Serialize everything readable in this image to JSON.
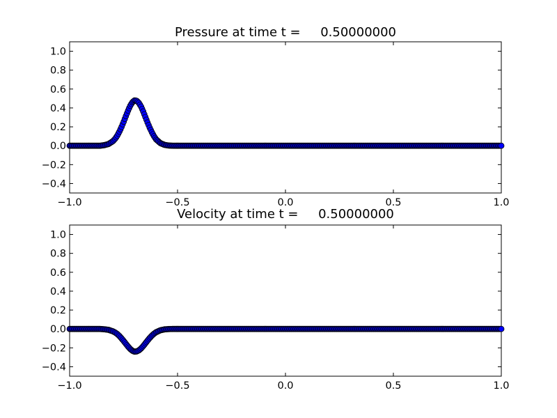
{
  "chart_data": [
    {
      "type": "scatter",
      "title": "Pressure at time t =     0.50000000",
      "xlim": [
        -1.0,
        1.0
      ],
      "ylim": [
        -0.5,
        1.1
      ],
      "xticks": [
        -1.0,
        -0.5,
        0.0,
        0.5,
        1.0
      ],
      "xtick_labels": [
        "−1.0",
        "−0.5",
        "0.0",
        "0.5",
        "1.0"
      ],
      "yticks": [
        -0.4,
        -0.2,
        0.0,
        0.2,
        0.4,
        0.6,
        0.8,
        1.0
      ],
      "ytick_labels": [
        "−0.4",
        "−0.2",
        "0.0",
        "0.2",
        "0.4",
        "0.6",
        "0.8",
        "1.0"
      ],
      "marker_color": "#0000ff",
      "x": [
        -1.0,
        -0.98,
        -0.96,
        -0.94,
        -0.92,
        -0.9,
        -0.88,
        -0.86,
        -0.84,
        -0.82,
        -0.8,
        -0.79,
        -0.78,
        -0.77,
        -0.76,
        -0.75,
        -0.74,
        -0.73,
        -0.72,
        -0.71,
        -0.7,
        -0.69,
        -0.68,
        -0.67,
        -0.66,
        -0.65,
        -0.64,
        -0.63,
        -0.62,
        -0.61,
        -0.6,
        -0.58,
        -0.56,
        -0.54,
        -0.52,
        -0.5,
        -0.45,
        -0.4,
        -0.35,
        -0.3,
        -0.25,
        -0.2,
        -0.15,
        -0.1,
        -0.05,
        0.0,
        0.05,
        0.1,
        0.15,
        0.2,
        0.25,
        0.3,
        0.35,
        0.4,
        0.45,
        0.5,
        0.55,
        0.6,
        0.65,
        0.7,
        0.75,
        0.8,
        0.85,
        0.9,
        0.95,
        1.0
      ],
      "y": [
        0.0,
        0.0,
        0.0,
        0.0,
        0.0,
        0.0,
        0.0,
        0.0,
        0.006,
        0.018,
        0.047,
        0.071,
        0.104,
        0.146,
        0.196,
        0.251,
        0.31,
        0.368,
        0.42,
        0.458,
        0.48,
        0.477,
        0.456,
        0.419,
        0.368,
        0.309,
        0.251,
        0.196,
        0.147,
        0.104,
        0.069,
        0.028,
        0.009,
        0.002,
        0.0,
        0.0,
        0.0,
        0.0,
        0.0,
        0.0,
        0.0,
        0.0,
        0.0,
        0.0,
        0.0,
        0.0,
        0.0,
        0.0,
        0.0,
        0.0,
        0.0,
        0.0,
        0.0,
        0.0,
        0.0,
        0.0,
        0.0,
        0.0,
        0.0,
        0.0,
        0.0,
        0.0,
        0.0,
        0.0,
        0.0,
        0.0
      ]
    },
    {
      "type": "scatter",
      "title": "Velocity at time t =     0.50000000",
      "xlim": [
        -1.0,
        1.0
      ],
      "ylim": [
        -0.5,
        1.1
      ],
      "xticks": [
        -1.0,
        -0.5,
        0.0,
        0.5,
        1.0
      ],
      "xtick_labels": [
        "−1.0",
        "−0.5",
        "0.0",
        "0.5",
        "1.0"
      ],
      "yticks": [
        -0.4,
        -0.2,
        0.0,
        0.2,
        0.4,
        0.6,
        0.8,
        1.0
      ],
      "ytick_labels": [
        "−0.4",
        "−0.2",
        "0.0",
        "0.2",
        "0.4",
        "0.6",
        "0.8",
        "1.0"
      ],
      "marker_color": "#0000ff",
      "x": [
        -1.0,
        -0.98,
        -0.96,
        -0.94,
        -0.92,
        -0.9,
        -0.88,
        -0.86,
        -0.84,
        -0.82,
        -0.8,
        -0.79,
        -0.78,
        -0.77,
        -0.76,
        -0.75,
        -0.74,
        -0.73,
        -0.72,
        -0.71,
        -0.7,
        -0.69,
        -0.68,
        -0.67,
        -0.66,
        -0.65,
        -0.64,
        -0.63,
        -0.62,
        -0.61,
        -0.6,
        -0.58,
        -0.56,
        -0.54,
        -0.52,
        -0.5,
        -0.45,
        -0.4,
        -0.35,
        -0.3,
        -0.25,
        -0.2,
        -0.15,
        -0.1,
        -0.05,
        0.0,
        0.05,
        0.1,
        0.15,
        0.2,
        0.25,
        0.3,
        0.35,
        0.4,
        0.45,
        0.5,
        0.55,
        0.6,
        0.65,
        0.7,
        0.75,
        0.8,
        0.85,
        0.9,
        0.95,
        1.0
      ],
      "y": [
        0.0,
        0.0,
        0.0,
        0.0,
        0.0,
        0.0,
        0.0,
        0.0,
        -0.003,
        -0.009,
        -0.024,
        -0.036,
        -0.052,
        -0.073,
        -0.098,
        -0.126,
        -0.155,
        -0.184,
        -0.21,
        -0.229,
        -0.24,
        -0.238,
        -0.228,
        -0.209,
        -0.184,
        -0.155,
        -0.126,
        -0.098,
        -0.073,
        -0.052,
        -0.035,
        -0.014,
        -0.004,
        -0.001,
        0.0,
        0.0,
        0.0,
        0.0,
        0.0,
        0.0,
        0.0,
        0.0,
        0.0,
        0.0,
        0.0,
        0.0,
        0.0,
        0.0,
        0.0,
        0.0,
        0.0,
        0.0,
        0.0,
        0.0,
        0.0,
        0.0,
        0.0,
        0.0,
        0.0,
        0.0,
        0.0,
        0.0,
        0.0,
        0.0,
        0.0,
        0.0
      ]
    }
  ]
}
